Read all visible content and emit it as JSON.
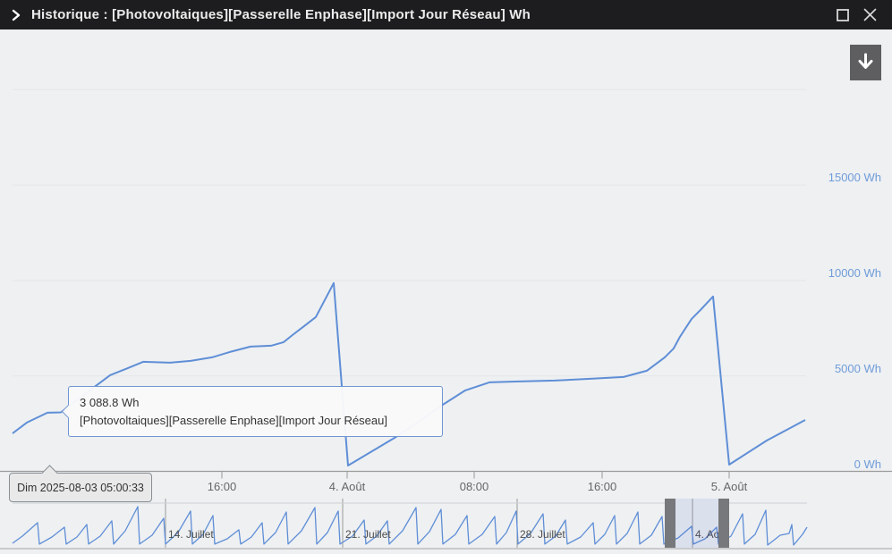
{
  "window": {
    "title": "Historique : [Photovoltaiques][Passerelle Enphase][Import Jour Réseau] Wh",
    "icons": {
      "chevron": "chevron-right",
      "maximize": "square-outline",
      "close": "x-mark",
      "download": "arrow-down"
    }
  },
  "tooltip": {
    "value": "3 088.8 Wh",
    "series_label": "[Photovoltaiques][Passerelle Enphase][Import Jour Réseau]"
  },
  "crosshair": {
    "label": "Dim 2025-08-03 05:00:33"
  },
  "colors": {
    "titlebar_bg": "#1d1d1f",
    "chart_bg": "#eef0f2",
    "series": "#5f8ed6",
    "gridline": "#e4e6e9",
    "axis_line": "#9b9b9b",
    "nav_axis_line": "#a5a5a5",
    "nav_outline": "#ccd0d4",
    "y_label": "#6f9cd9",
    "x_label": "#666666",
    "nav_label": "#4d4d4d",
    "handle": "#76787b",
    "selection_tint": "rgba(60,90,200,0.10)",
    "download_btn_bg": "#5e5e60"
  },
  "chart_data": {
    "type": "line",
    "unit": "Wh",
    "series_name": "[Photovoltaiques][Passerelle Enphase][Import Jour Réseau]",
    "grid": true,
    "legend": false,
    "y_axis": {
      "range": [
        0,
        20000
      ],
      "ticks": [
        {
          "value": 0,
          "label": "0 Wh"
        },
        {
          "value": 5000,
          "label": "5000 Wh"
        },
        {
          "value": 10000,
          "label": "10000 Wh"
        },
        {
          "value": 15000,
          "label": "15000 Wh"
        },
        {
          "value": 20000,
          "label": ""
        }
      ]
    },
    "x_axis": {
      "ticks": [
        {
          "x": 248,
          "label": "16:00"
        },
        {
          "x": 388,
          "label": "4. Août"
        },
        {
          "x": 530,
          "label": "08:00"
        },
        {
          "x": 673,
          "label": "16:00"
        },
        {
          "x": 815,
          "label": "5. Août"
        }
      ]
    },
    "main_series_points": [
      [
        14,
        1992
      ],
      [
        30,
        2554
      ],
      [
        53,
        3069
      ],
      [
        68,
        3089
      ],
      [
        85,
        3700
      ],
      [
        103,
        4334
      ],
      [
        123,
        5037
      ],
      [
        143,
        5412
      ],
      [
        160,
        5740
      ],
      [
        190,
        5693
      ],
      [
        213,
        5787
      ],
      [
        237,
        5974
      ],
      [
        257,
        6255
      ],
      [
        280,
        6537
      ],
      [
        303,
        6583
      ],
      [
        317,
        6771
      ],
      [
        327,
        7146
      ],
      [
        340,
        7614
      ],
      [
        353,
        8083
      ],
      [
        373,
        9864
      ],
      [
        389,
        305
      ],
      [
        441,
        1757
      ],
      [
        468,
        2600
      ],
      [
        495,
        3491
      ],
      [
        520,
        4240
      ],
      [
        547,
        4662
      ],
      [
        580,
        4709
      ],
      [
        620,
        4756
      ],
      [
        660,
        4850
      ],
      [
        697,
        4943
      ],
      [
        723,
        5271
      ],
      [
        743,
        5974
      ],
      [
        753,
        6443
      ],
      [
        760,
        7052
      ],
      [
        773,
        7989
      ],
      [
        783,
        8458
      ],
      [
        797,
        9161
      ],
      [
        815,
        351
      ],
      [
        857,
        1617
      ],
      [
        900,
        2694
      ]
    ],
    "navigator": {
      "ticks": [
        {
          "x": 185,
          "label": "14. Juillet"
        },
        {
          "x": 383,
          "label": "21. Juillet"
        },
        {
          "x": 578,
          "label": "28. Juillet"
        },
        {
          "x": 774,
          "label": "4. Août"
        }
      ],
      "points": [
        [
          14,
          1300
        ],
        [
          25,
          4800
        ],
        [
          42,
          11300
        ],
        [
          44,
          900
        ],
        [
          58,
          4350
        ],
        [
          72,
          9150
        ],
        [
          74,
          900
        ],
        [
          86,
          4350
        ],
        [
          97,
          10450
        ],
        [
          99,
          900
        ],
        [
          112,
          4800
        ],
        [
          125,
          12200
        ],
        [
          127,
          900
        ],
        [
          140,
          7400
        ],
        [
          154,
          19150
        ],
        [
          156,
          900
        ],
        [
          170,
          5200
        ],
        [
          183,
          13500
        ],
        [
          185,
          900
        ],
        [
          199,
          6500
        ],
        [
          213,
          17000
        ],
        [
          215,
          900
        ],
        [
          227,
          5650
        ],
        [
          238,
          14800
        ],
        [
          240,
          900
        ],
        [
          254,
          3500
        ],
        [
          267,
          7850
        ],
        [
          269,
          900
        ],
        [
          281,
          4350
        ],
        [
          293,
          11300
        ],
        [
          295,
          900
        ],
        [
          308,
          6500
        ],
        [
          320,
          16500
        ],
        [
          322,
          900
        ],
        [
          337,
          7400
        ],
        [
          352,
          18700
        ],
        [
          354,
          900
        ],
        [
          366,
          6500
        ],
        [
          378,
          17000
        ],
        [
          380,
          900
        ],
        [
          394,
          4800
        ],
        [
          407,
          12600
        ],
        [
          409,
          900
        ],
        [
          421,
          4800
        ],
        [
          433,
          12200
        ],
        [
          435,
          900
        ],
        [
          450,
          7400
        ],
        [
          465,
          18700
        ],
        [
          467,
          900
        ],
        [
          480,
          7000
        ],
        [
          493,
          17800
        ],
        [
          495,
          900
        ],
        [
          509,
          5650
        ],
        [
          522,
          14800
        ],
        [
          524,
          900
        ],
        [
          539,
          5650
        ],
        [
          553,
          14350
        ],
        [
          555,
          900
        ],
        [
          566,
          6500
        ],
        [
          577,
          17000
        ],
        [
          579,
          900
        ],
        [
          593,
          6100
        ],
        [
          607,
          15650
        ],
        [
          609,
          900
        ],
        [
          621,
          4800
        ],
        [
          632,
          12600
        ],
        [
          634,
          900
        ],
        [
          649,
          4350
        ],
        [
          663,
          11300
        ],
        [
          665,
          900
        ],
        [
          676,
          5650
        ],
        [
          687,
          14800
        ],
        [
          689,
          900
        ],
        [
          701,
          6100
        ],
        [
          713,
          16500
        ],
        [
          715,
          900
        ],
        [
          728,
          5200
        ],
        [
          740,
          14350
        ],
        [
          742,
          900
        ],
        [
          758,
          3900
        ],
        [
          773,
          9550
        ],
        [
          775,
          900
        ],
        [
          788,
          3500
        ],
        [
          801,
          9150
        ],
        [
          803,
          900
        ],
        [
          817,
          4800
        ],
        [
          830,
          15650
        ],
        [
          832,
          900
        ],
        [
          844,
          5650
        ],
        [
          856,
          17400
        ],
        [
          858,
          450
        ],
        [
          872,
          5200
        ],
        [
          882,
          6100
        ],
        [
          885,
          10450
        ],
        [
          887,
          450
        ],
        [
          897,
          5650
        ],
        [
          902,
          9150
        ]
      ],
      "selection": {
        "from_x": 743,
        "to_x": 815,
        "handle_width": 12
      }
    }
  }
}
